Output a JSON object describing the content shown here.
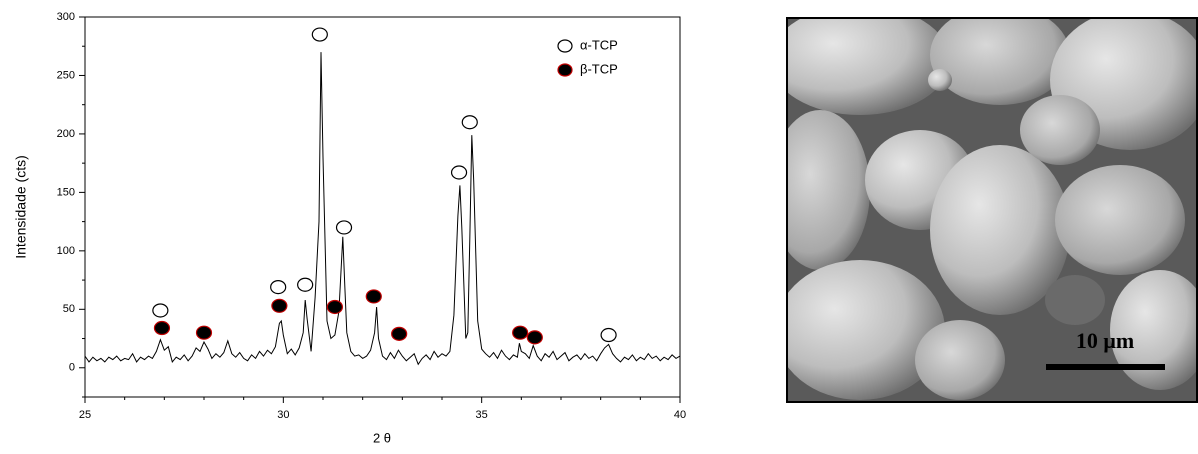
{
  "chart_data": {
    "type": "line",
    "xlabel": "2 θ",
    "ylabel": "Intensidade (cts)",
    "xlim": [
      25,
      40
    ],
    "ylim": [
      -25,
      300
    ],
    "xticks": [
      25,
      30,
      35,
      40
    ],
    "yticks": [
      0,
      50,
      100,
      150,
      200,
      250,
      300
    ],
    "xminorticks": [
      26,
      27,
      28,
      29,
      31,
      32,
      33,
      34,
      36,
      37,
      38,
      39
    ],
    "yminorticks": [
      -25,
      25,
      75,
      125,
      175,
      225,
      275
    ],
    "legend": "upper right",
    "series": [
      {
        "type": "line",
        "color": "#000000",
        "x": [
          25.0,
          25.1,
          25.2,
          25.3,
          25.4,
          25.5,
          25.6,
          25.7,
          25.8,
          25.9,
          26.0,
          26.1,
          26.2,
          26.3,
          26.4,
          26.5,
          26.6,
          26.7,
          26.8,
          26.9,
          27.0,
          27.1,
          27.2,
          27.3,
          27.4,
          27.5,
          27.6,
          27.7,
          27.8,
          27.9,
          28.0,
          28.1,
          28.2,
          28.3,
          28.4,
          28.5,
          28.6,
          28.7,
          28.8,
          28.9,
          29.0,
          29.1,
          29.2,
          29.3,
          29.4,
          29.5,
          29.6,
          29.7,
          29.8,
          29.9,
          29.95,
          30.0,
          30.1,
          30.2,
          30.3,
          30.4,
          30.5,
          30.55,
          30.6,
          30.7,
          30.8,
          30.9,
          30.95,
          31.0,
          31.1,
          31.2,
          31.3,
          31.4,
          31.5,
          31.55,
          31.6,
          31.7,
          31.8,
          31.9,
          32.0,
          32.1,
          32.2,
          32.3,
          32.35,
          32.4,
          32.5,
          32.6,
          32.7,
          32.8,
          32.9,
          33.0,
          33.1,
          33.2,
          33.3,
          33.4,
          33.5,
          33.6,
          33.7,
          33.8,
          33.9,
          34.0,
          34.1,
          34.2,
          34.3,
          34.4,
          34.45,
          34.5,
          34.6,
          34.65,
          34.7,
          34.75,
          34.8,
          34.9,
          35.0,
          35.1,
          35.2,
          35.3,
          35.4,
          35.5,
          35.6,
          35.7,
          35.8,
          35.9,
          35.95,
          36.0,
          36.1,
          36.2,
          36.3,
          36.4,
          36.5,
          36.6,
          36.7,
          36.8,
          36.9,
          37.0,
          37.1,
          37.2,
          37.3,
          37.4,
          37.5,
          37.6,
          37.7,
          37.8,
          37.9,
          38.0,
          38.1,
          38.2,
          38.3,
          38.4,
          38.5,
          38.6,
          38.7,
          38.8,
          38.9,
          39.0,
          39.1,
          39.2,
          39.3,
          39.4,
          39.5,
          39.6,
          39.7,
          39.8,
          39.9,
          40.0
        ],
        "y": [
          10,
          5,
          9,
          6,
          8,
          5,
          9,
          7,
          10,
          6,
          8,
          7,
          12,
          5,
          9,
          7,
          10,
          8,
          14,
          24,
          15,
          18,
          5,
          9,
          7,
          11,
          6,
          10,
          17,
          14,
          22,
          16,
          8,
          12,
          9,
          13,
          23,
          12,
          9,
          13,
          8,
          6,
          11,
          8,
          14,
          10,
          15,
          12,
          18,
          38,
          40,
          28,
          12,
          16,
          11,
          17,
          30,
          58,
          42,
          14,
          60,
          125,
          270,
          180,
          40,
          25,
          28,
          48,
          112,
          70,
          30,
          14,
          10,
          11,
          8,
          10,
          15,
          30,
          52,
          25,
          10,
          7,
          13,
          8,
          15,
          10,
          6,
          9,
          12,
          3,
          8,
          11,
          7,
          14,
          9,
          12,
          10,
          14,
          45,
          130,
          156,
          120,
          25,
          30,
          110,
          199,
          160,
          40,
          16,
          12,
          9,
          13,
          8,
          15,
          10,
          7,
          11,
          9,
          21,
          14,
          12,
          8,
          19,
          10,
          6,
          12,
          9,
          14,
          7,
          10,
          13,
          6,
          9,
          11,
          7,
          12,
          8,
          10,
          6,
          12,
          17,
          20,
          12,
          8,
          5,
          9,
          7,
          11,
          6,
          9,
          7,
          12,
          8,
          10,
          6,
          9,
          7,
          11,
          8,
          10
        ]
      },
      {
        "type": "scatter",
        "name": "α-TCP",
        "color": "#ffffff",
        "edgecolor": "#000000",
        "x": [
          26.9,
          29.87,
          30.55,
          30.92,
          31.53,
          34.43,
          34.7,
          38.2
        ],
        "y": [
          49,
          69,
          71,
          285,
          120,
          167,
          210,
          28
        ]
      },
      {
        "type": "scatter",
        "name": "β-TCP",
        "color": "#000000",
        "edgecolor": "#c00000",
        "x": [
          26.94,
          28.0,
          29.9,
          31.3,
          32.28,
          32.92,
          35.97,
          36.34
        ],
        "y": [
          34,
          30,
          53,
          52,
          61,
          29,
          30,
          26
        ]
      }
    ]
  },
  "image": {
    "scale_bar": "10 μm"
  }
}
